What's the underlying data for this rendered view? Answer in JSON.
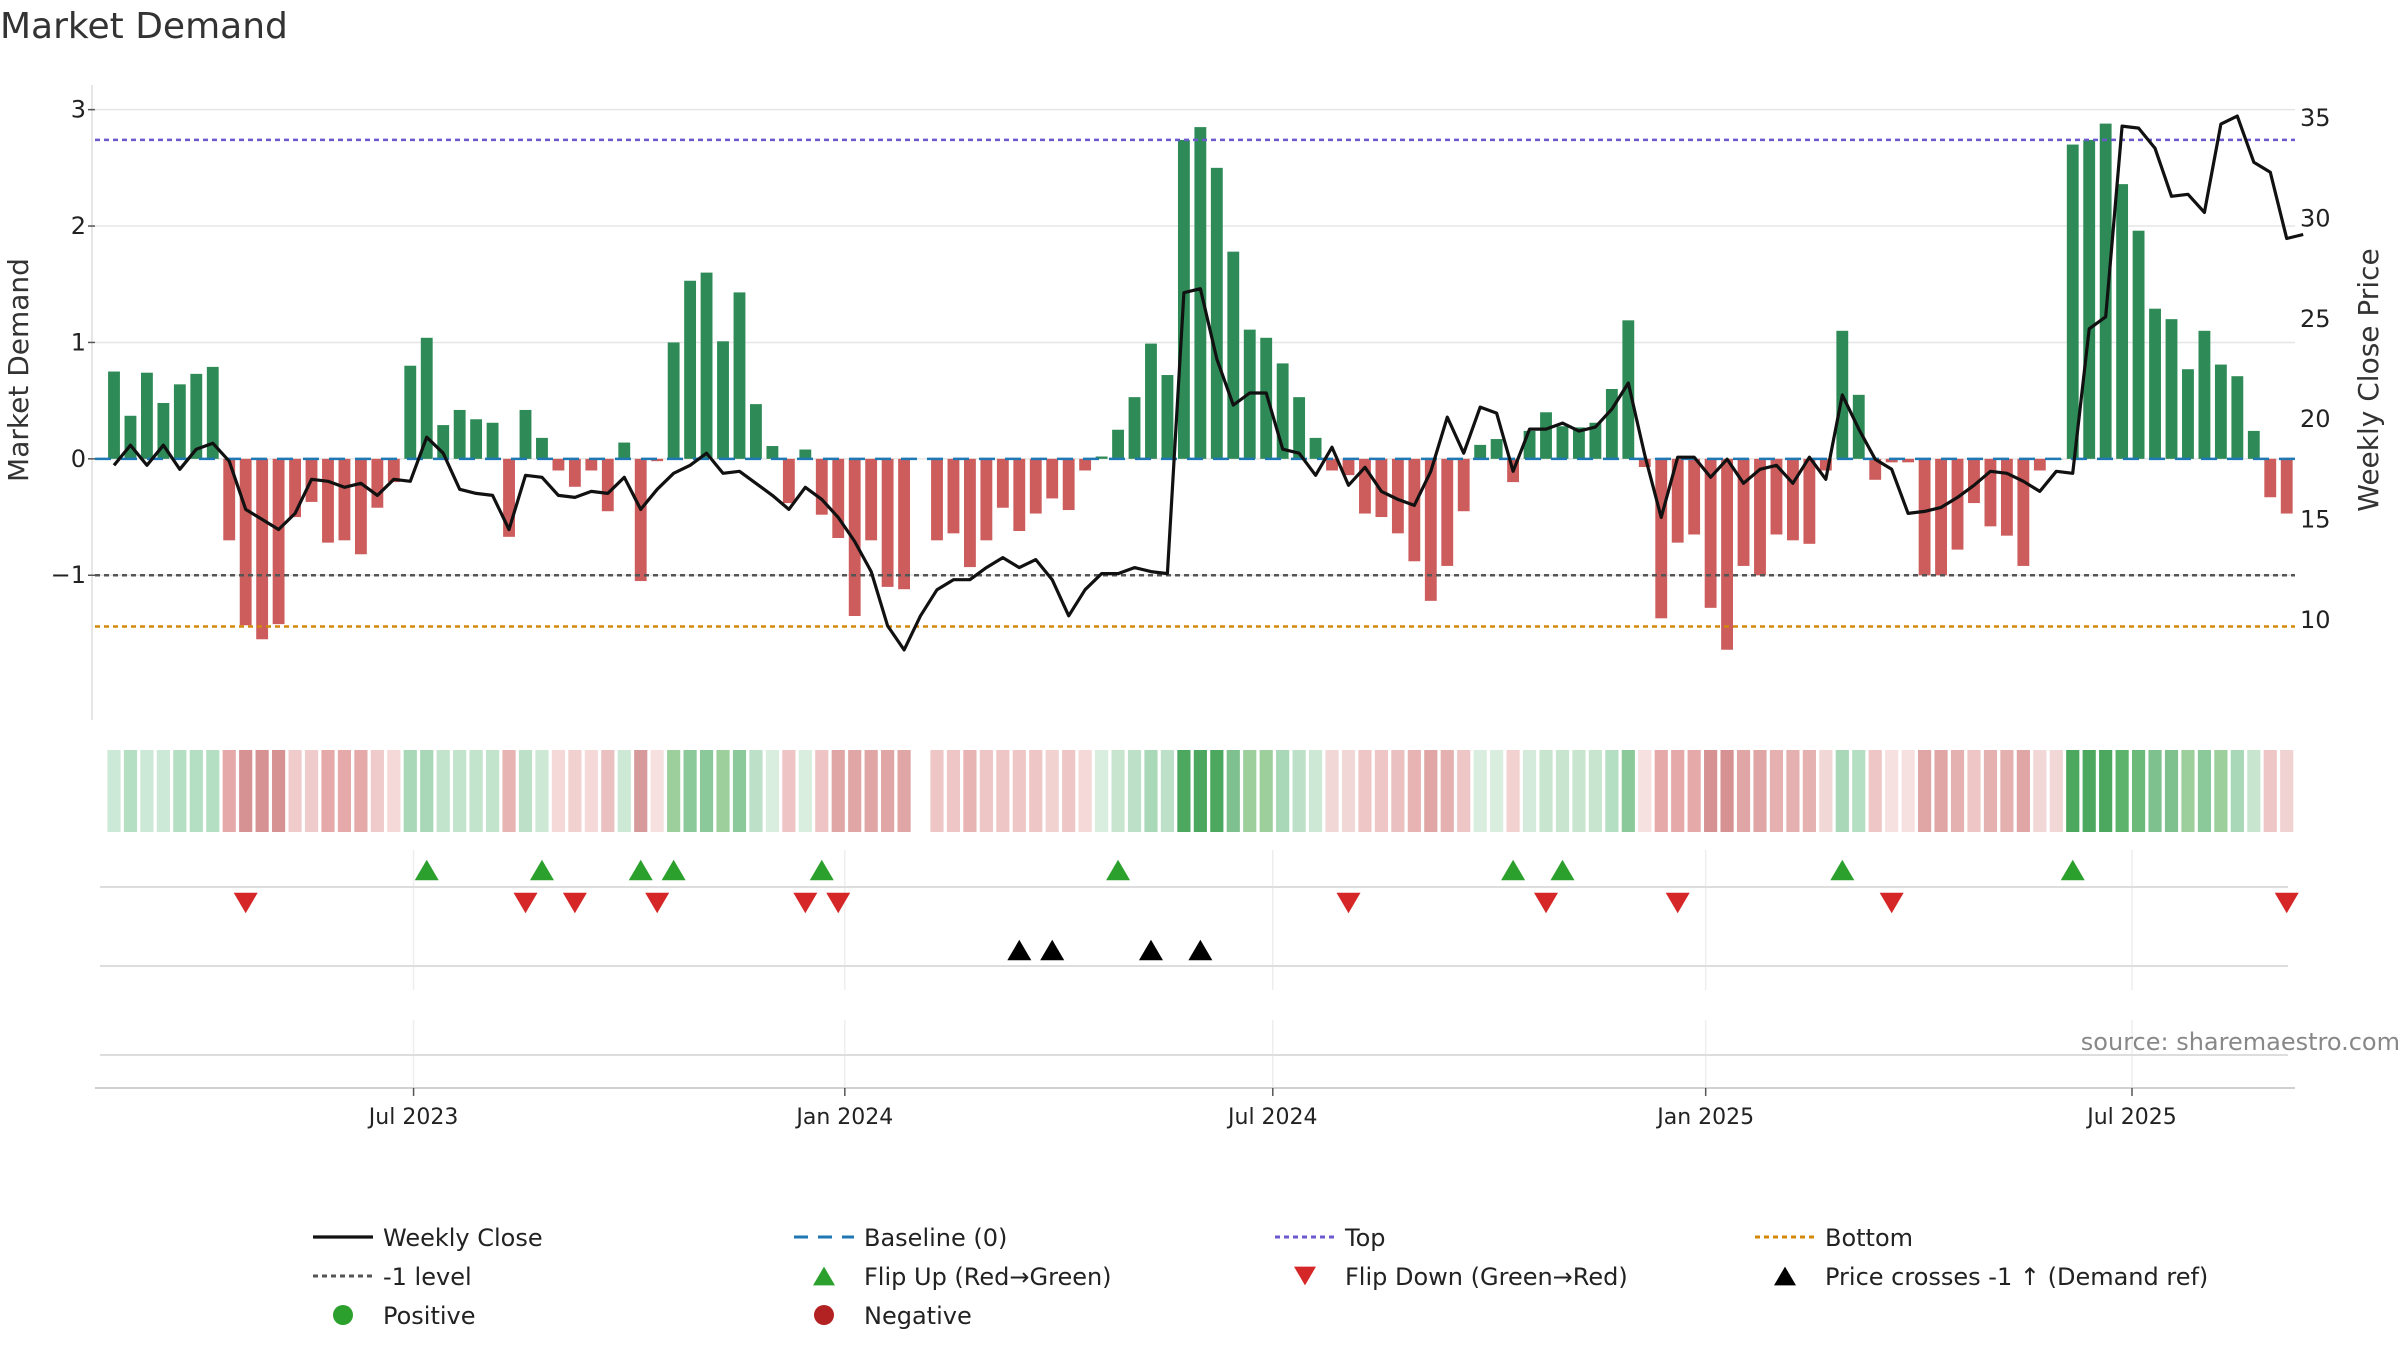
{
  "chart_data": {
    "type": "bar",
    "title": "Market Demand",
    "ylabel": "Market Demand",
    "y2label": "Weekly Close Price",
    "ylim": [
      -1.9,
      3.1
    ],
    "y2lim": [
      7,
      36
    ],
    "yticks": [
      3,
      2,
      1,
      0,
      -1
    ],
    "yticklabels": [
      "3",
      "2",
      "1",
      "0",
      "−1"
    ],
    "y2ticks": [
      35,
      30,
      25,
      20,
      15,
      10
    ],
    "levels": {
      "top": 2.74,
      "minus_one": -1.0,
      "bottom": -1.44,
      "baseline": 0
    },
    "x_start": "2023-03-06",
    "week_count": 134,
    "x_ticks": [
      {
        "label": "Jul 2023",
        "week": 18.2
      },
      {
        "label": "Jan 2024",
        "week": 44.4
      },
      {
        "label": "Jul 2024",
        "week": 70.4
      },
      {
        "label": "Jan 2025",
        "week": 96.7
      },
      {
        "label": "Jul 2025",
        "week": 122.6
      }
    ],
    "demand": [
      0.75,
      0.37,
      0.74,
      0.48,
      0.64,
      0.73,
      0.79,
      -0.7,
      -1.43,
      -1.55,
      -1.42,
      -0.5,
      -0.37,
      -0.72,
      -0.7,
      -0.82,
      -0.42,
      -0.2,
      0.8,
      1.04,
      0.29,
      0.42,
      0.34,
      0.31,
      -0.67,
      0.42,
      0.18,
      -0.1,
      -0.24,
      -0.1,
      -0.45,
      0.14,
      -1.05,
      -0.02,
      1.0,
      1.53,
      1.6,
      1.01,
      1.43,
      0.47,
      0.11,
      -0.38,
      0.08,
      -0.48,
      -0.68,
      -1.35,
      -0.7,
      -1.1,
      -1.12,
      null,
      -0.7,
      -0.64,
      -0.93,
      -0.7,
      -0.42,
      -0.62,
      -0.47,
      -0.34,
      -0.44,
      -0.1,
      0.02,
      0.25,
      0.53,
      0.99,
      0.72,
      2.74,
      2.85,
      2.5,
      1.78,
      1.11,
      1.04,
      0.82,
      0.53,
      0.18,
      -0.1,
      -0.14,
      -0.47,
      -0.5,
      -0.64,
      -0.88,
      -1.22,
      -0.92,
      -0.45,
      0.12,
      0.17,
      -0.2,
      0.24,
      0.4,
      0.28,
      0.27,
      0.31,
      0.6,
      1.19,
      -0.07,
      -1.37,
      -0.72,
      -0.65,
      -1.28,
      -1.64,
      -0.92,
      -1.0,
      -0.65,
      -0.7,
      -0.73,
      -0.1,
      1.1,
      0.55,
      -0.18,
      -0.03,
      -0.03,
      -1.0,
      -1.0,
      -0.78,
      -0.38,
      -0.58,
      -0.66,
      -0.92,
      -0.1,
      0.0,
      2.7,
      2.74,
      2.88,
      2.36,
      1.96,
      1.29,
      1.2,
      0.77,
      1.1,
      0.81,
      0.71,
      0.24,
      -0.33,
      -0.47
    ],
    "close": [
      17.7,
      18.7,
      17.7,
      18.7,
      17.5,
      18.5,
      18.8,
      17.9,
      15.5,
      15.0,
      14.5,
      15.3,
      17.0,
      16.9,
      16.6,
      16.8,
      16.2,
      17.0,
      16.9,
      19.1,
      18.3,
      16.5,
      16.3,
      16.2,
      14.5,
      17.2,
      17.1,
      16.2,
      16.1,
      16.4,
      16.3,
      17.1,
      15.5,
      16.5,
      17.3,
      17.7,
      18.3,
      17.3,
      17.4,
      16.8,
      16.2,
      15.5,
      16.6,
      16.0,
      15.1,
      13.9,
      12.4,
      9.7,
      8.5,
      10.2,
      11.5,
      12.0,
      12.0,
      12.6,
      13.1,
      12.6,
      13.0,
      12.0,
      10.2,
      11.5,
      12.3,
      12.3,
      12.6,
      12.4,
      12.3,
      26.3,
      26.5,
      23.0,
      20.7,
      21.3,
      21.3,
      18.5,
      18.3,
      17.2,
      18.6,
      16.7,
      17.6,
      16.4,
      16.0,
      15.7,
      17.4,
      20.1,
      18.3,
      20.6,
      20.3,
      17.4,
      19.5,
      19.5,
      19.8,
      19.4,
      19.6,
      20.5,
      21.8,
      18.2,
      15.1,
      18.1,
      18.1,
      17.1,
      18.0,
      16.8,
      17.5,
      17.7,
      16.8,
      18.1,
      17.0,
      21.2,
      19.5,
      18.0,
      17.5,
      15.3,
      15.4,
      15.6,
      16.1,
      16.7,
      17.4,
      17.3,
      16.9,
      16.4,
      17.4,
      17.3,
      24.5,
      25.1,
      34.6,
      34.5,
      33.5,
      31.1,
      31.2,
      30.3,
      34.7,
      35.1,
      32.8,
      32.3,
      29.0,
      29.2
    ],
    "strip_colors": [
      "#cce8d6",
      "#b5dfc3",
      "#cce8d6",
      "#cce8d6",
      "#b5dfc3",
      "#b5dfc3",
      "#b5dfc3",
      "#e5a9a9",
      "#d69292",
      "#d69292",
      "#d69292",
      "#efcbcb",
      "#efcbcb",
      "#e5a9a9",
      "#e5a9a9",
      "#e5a9a9",
      "#efcbcb",
      "#f5d9d9",
      "#a8d8b7",
      "#a8d8b7",
      "#c2e3cc",
      "#c2e3cc",
      "#c2e3cc",
      "#c2e3cc",
      "#e8b3b3",
      "#bde1c8",
      "#cde9d6",
      "#f5d9d9",
      "#f1d0d0",
      "#f5d9d9",
      "#eac0c0",
      "#cde9d6",
      "#d69a9a",
      "#f7e0e0",
      "#9ccf9c",
      "#8bc99b",
      "#8bc99b",
      "#9ccf9c",
      "#8bc99b",
      "#bde1c8",
      "#d9eede",
      "#eec4c4",
      "#d9eede",
      "#eec4c4",
      "#e0a6a6",
      "#e0a6a6",
      "#e0a6a6",
      "#e0a6a6",
      "#e0a6a6",
      null,
      "#efc6c6",
      "#efc6c6",
      "#e8b3b3",
      "#efc6c6",
      "#efc6c6",
      "#efc6c6",
      "#efc6c6",
      "#f2d1d1",
      "#efc6c6",
      "#f5d9d9",
      "#d9eede",
      "#c8e6cf",
      "#bde1c8",
      "#a8d8b7",
      "#bde1c8",
      "#4ca85f",
      "#4ca85f",
      "#4ca85f",
      "#7fc08f",
      "#9ccf9c",
      "#9ccf9c",
      "#a8d8b7",
      "#bde1c8",
      "#cde9d6",
      "#f2d7d7",
      "#f2d7d7",
      "#efc6c6",
      "#efc6c6",
      "#eac0c0",
      "#e8b3b3",
      "#e0a6a6",
      "#e5b0b0",
      "#efc6c6",
      "#d9eede",
      "#d9eede",
      "#f2d1d1",
      "#d4eadb",
      "#c8e6cf",
      "#c8e6cf",
      "#c8e6cf",
      "#c8e6cf",
      "#b5dfc3",
      "#8bc99b",
      "#f7e0e0",
      "#e5a9a9",
      "#e5a9a9",
      "#e5a9a9",
      "#d69292",
      "#d69292",
      "#e0a6a6",
      "#e0a6a6",
      "#e5b0b0",
      "#e5b0b0",
      "#e5b0b0",
      "#f2d7d7",
      "#a8d8b7",
      "#b5dfc3",
      "#efc6c6",
      "#f7e0e0",
      "#f7e0e0",
      "#e0a6a6",
      "#e0a6a6",
      "#e5b0b0",
      "#efc6c6",
      "#e5b0b0",
      "#e5b0b0",
      "#e0a6a6",
      "#f2d7d7",
      "#f2d7d7",
      "#4ca85f",
      "#4ca85f",
      "#4ca85f",
      "#5cb36b",
      "#6cba7a",
      "#7fc08f",
      "#7fc08f",
      "#9ccf9c",
      "#8bc99b",
      "#9ccf9c",
      "#a8d8b7",
      "#c8e6cf",
      "#efc6c6",
      "#f0d2d2"
    ],
    "flip_up_weeks": [
      19,
      26,
      32,
      34,
      43,
      61,
      85,
      88,
      105,
      119
    ],
    "flip_down_weeks": [
      8,
      25,
      28,
      33,
      42,
      44,
      75,
      87,
      95,
      108,
      132
    ],
    "price_cross_weeks": [
      55,
      57,
      63,
      66
    ],
    "source": "source: sharemaestro.com",
    "legend": [
      {
        "label": "Weekly Close",
        "marker": "line",
        "color": "#111111"
      },
      {
        "label": "Baseline (0)",
        "marker": "dash",
        "color": "#1f77b4"
      },
      {
        "label": "Top",
        "marker": "dot",
        "color": "#6a5acd"
      },
      {
        "label": "Bottom",
        "marker": "dot",
        "color": "#d4880a"
      },
      {
        "label": "-1 level",
        "marker": "dot",
        "color": "#555555"
      },
      {
        "label": "Flip Up (Red→Green)",
        "marker": "tri-up",
        "color": "#2ca02c"
      },
      {
        "label": "Flip Down (Green→Red)",
        "marker": "tri-down",
        "color": "#d62728"
      },
      {
        "label": "Price crosses -1 ↑ (Demand ref)",
        "marker": "tri-up",
        "color": "#000000"
      },
      {
        "label": "Positive",
        "marker": "circle",
        "color": "#2ca02c"
      },
      {
        "label": "Negative",
        "marker": "circle",
        "color": "#b22222"
      }
    ],
    "colors": {
      "positive_bar": "#2e8b57",
      "negative_bar": "#cd5c5c",
      "flip_up": "#2ca02c",
      "flip_down": "#d62728",
      "price_cross": "#000000",
      "grid": "#e6e6e6",
      "axis": "#d0d0d0"
    }
  }
}
